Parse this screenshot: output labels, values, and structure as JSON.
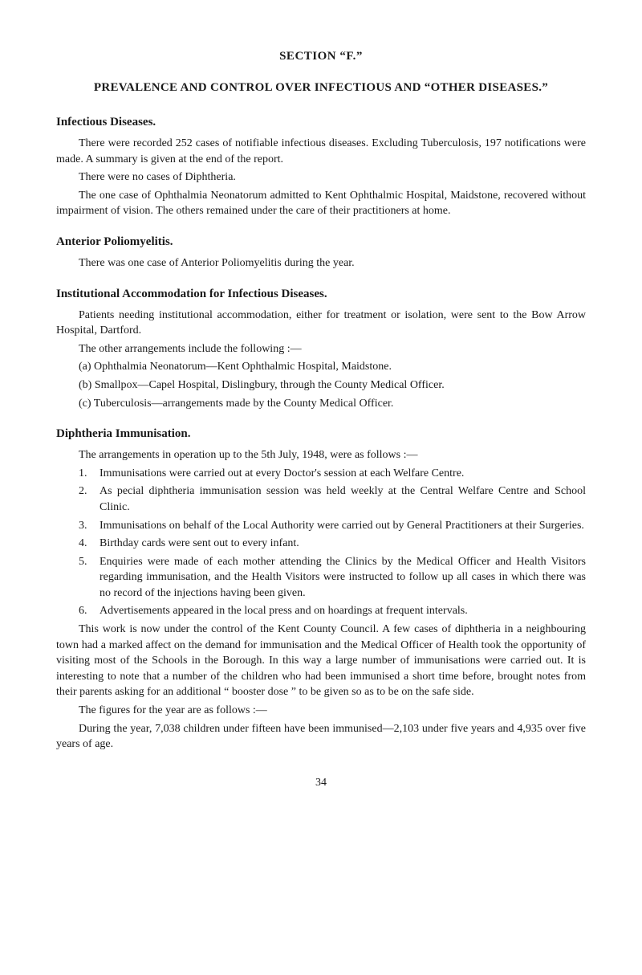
{
  "section_label": "SECTION “F.”",
  "main_title": "PREVALENCE AND CONTROL OVER INFECTIOUS AND “OTHER DISEASES.”",
  "infectious": {
    "heading": "Infectious Diseases.",
    "p1": "There were recorded 252 cases of notifiable infectious diseases. Excluding Tuberculosis, 197 notifications were made. A summary is given at the end of the report.",
    "p2": "There were no cases of Diphtheria.",
    "p3": "The one case of Ophthalmia Neonatorum admitted to Kent Ophthalmic Hospital, Maidstone, recovered without impairment of vision. The others remained under the care of their practitioners at home."
  },
  "polio": {
    "heading": "Anterior Poliomyelitis.",
    "p1": "There was one case of Anterior Poliomyelitis during the year."
  },
  "institutional": {
    "heading": "Institutional Accommodation for Infectious Diseases.",
    "p1": "Patients needing institutional accommodation, either for treatment or isolation, were sent to the Bow Arrow Hospital, Dartford.",
    "p2": "The other arrangements include the following :—",
    "a": "(a) Ophthalmia Neonatorum—Kent Ophthalmic Hospital, Maidstone.",
    "b": "(b) Smallpox—Capel Hospital, Dislingbury, through the County Medical Officer.",
    "c": "(c) Tuberculosis—arrangements made by the County Medical Officer."
  },
  "diphtheria": {
    "heading": "Diphtheria Immunisation.",
    "intro": "The arrangements in operation up to the 5th July, 1948, were as follows :—",
    "items": [
      {
        "num": "1.",
        "text": "Immunisations were carried out at every Doctor's session at each Welfare Centre."
      },
      {
        "num": "2.",
        "text": "As pecial diphtheria immunisation session was held weekly at the Central Welfare Centre and School Clinic."
      },
      {
        "num": "3.",
        "text": "Immunisations on behalf of the Local Authority were carried out by General Practitioners at their Surgeries."
      },
      {
        "num": "4.",
        "text": "Birthday cards were sent out to every infant."
      },
      {
        "num": "5.",
        "text": "Enquiries were made of each mother attending the Clinics by the Medical Officer and Health Visitors regarding immunisation, and the Health Visitors were instructed to follow up all cases in which there was no record of the injections having been given."
      },
      {
        "num": "6.",
        "text": "Advertisements appeared in the local press and on hoardings at frequent intervals."
      }
    ],
    "p_after1": "This work is now under the control of the Kent County Council. A few cases of diphtheria in a neighbouring town had a marked affect on the demand for immunisation and the Medical Officer of Health took the opportunity of visiting most of the Schools in the Borough. In this way a large number of immunisations were carried out. It is interesting to note that a number of the children who had been immunised a short time before, brought notes from their parents asking for an additional “ booster dose ” to be given so as to be on the safe side.",
    "p_after2": "The figures for the year are as follows :—",
    "p_after3": "During the year, 7,038 children under fifteen have been immunised—2,103 under five years and 4,935 over five years of age."
  },
  "page_number": "34"
}
